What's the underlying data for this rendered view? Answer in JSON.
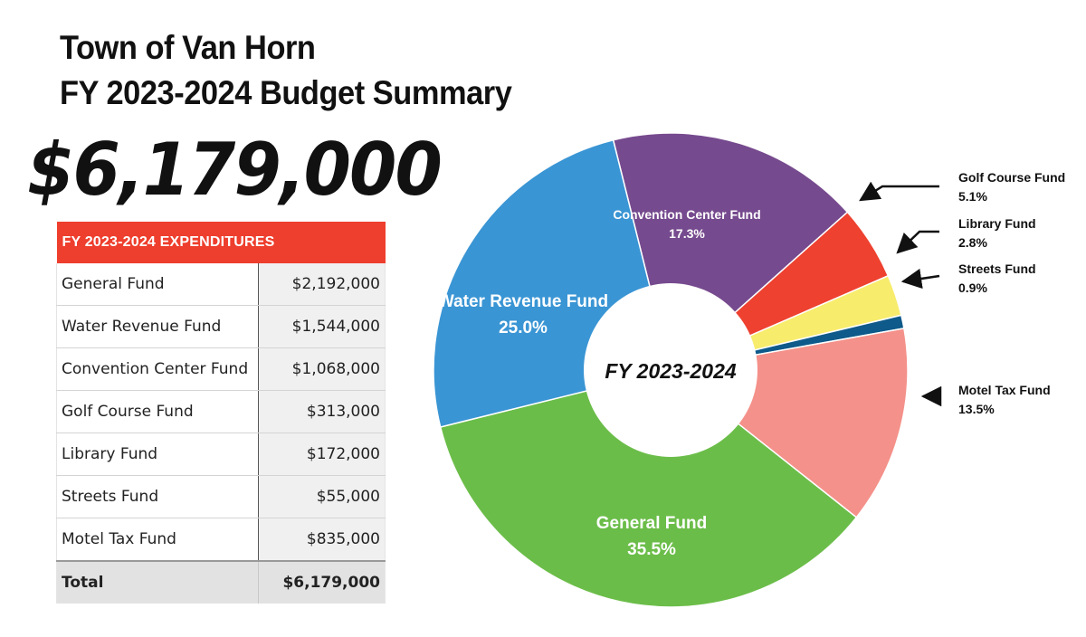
{
  "title_line1": "Town of Van Horn",
  "title_line2": "FY 2023-2024 Budget Summary",
  "total_amount": "$6,179,000",
  "table": {
    "header": "FY 2023-2024 EXPENDITURES",
    "rows": [
      {
        "name": "General Fund",
        "amount": "$2,192,000"
      },
      {
        "name": "Water Revenue Fund",
        "amount": "$1,544,000"
      },
      {
        "name": "Convention Center Fund",
        "amount": "$1,068,000"
      },
      {
        "name": "Golf Course Fund",
        "amount": "$313,000"
      },
      {
        "name": "Library Fund",
        "amount": "$172,000"
      },
      {
        "name": "Streets Fund",
        "amount": "$55,000"
      },
      {
        "name": "Motel Tax Fund",
        "amount": "$835,000"
      }
    ],
    "total": {
      "name": "Total",
      "amount": "$6,179,000"
    }
  },
  "chart_data": {
    "type": "pie",
    "donut": true,
    "center_label": "FY 2023-2024",
    "slices": [
      {
        "name": "Convention Center Fund",
        "percent": 17.3,
        "percent_label": "17.3%",
        "color": "#764a8e",
        "label_placement": "inside"
      },
      {
        "name": "Golf Course Fund",
        "percent": 5.1,
        "percent_label": "5.1%",
        "color": "#ee4130",
        "label_placement": "outside"
      },
      {
        "name": "Library Fund",
        "percent": 2.8,
        "percent_label": "2.8%",
        "color": "#f7ec6c",
        "label_placement": "outside"
      },
      {
        "name": "Streets Fund",
        "percent": 0.9,
        "percent_label": "0.9%",
        "color": "#0e5a8a",
        "label_placement": "outside"
      },
      {
        "name": "Motel Tax Fund",
        "percent": 13.5,
        "percent_label": "13.5%",
        "color": "#f4918a",
        "label_placement": "outside"
      },
      {
        "name": "General Fund",
        "percent": 35.5,
        "percent_label": "35.5%",
        "color": "#6bbd49",
        "label_placement": "inside"
      },
      {
        "name": "Water Revenue Fund",
        "percent": 25.0,
        "percent_label": "25.0%",
        "color": "#3a95d4",
        "label_placement": "inside"
      }
    ]
  }
}
